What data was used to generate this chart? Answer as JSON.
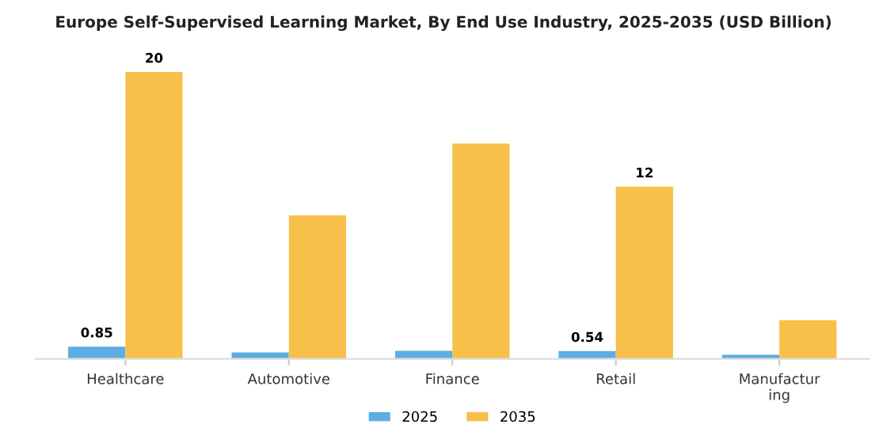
{
  "chart_data": {
    "type": "bar",
    "title": "Europe Self-Supervised Learning Market, By End Use Industry, 2025-2035 (USD Billion)",
    "categories": [
      "Healthcare",
      "Automotive",
      "Finance",
      "Retail",
      "Manufactur\ning"
    ],
    "series": [
      {
        "name": "2025",
        "color": "#5dade2",
        "values": [
          0.85,
          0.45,
          0.56,
          0.54,
          0.28
        ],
        "value_labels": [
          "0.85",
          null,
          null,
          "0.54",
          null
        ]
      },
      {
        "name": "2035",
        "color": "#f7c04a",
        "values": [
          20,
          10.0,
          15.0,
          12,
          2.7
        ],
        "value_labels": [
          "20",
          null,
          null,
          "12",
          null
        ]
      }
    ],
    "tick_labels": "x",
    "legend": "bottom",
    "grid": false
  }
}
